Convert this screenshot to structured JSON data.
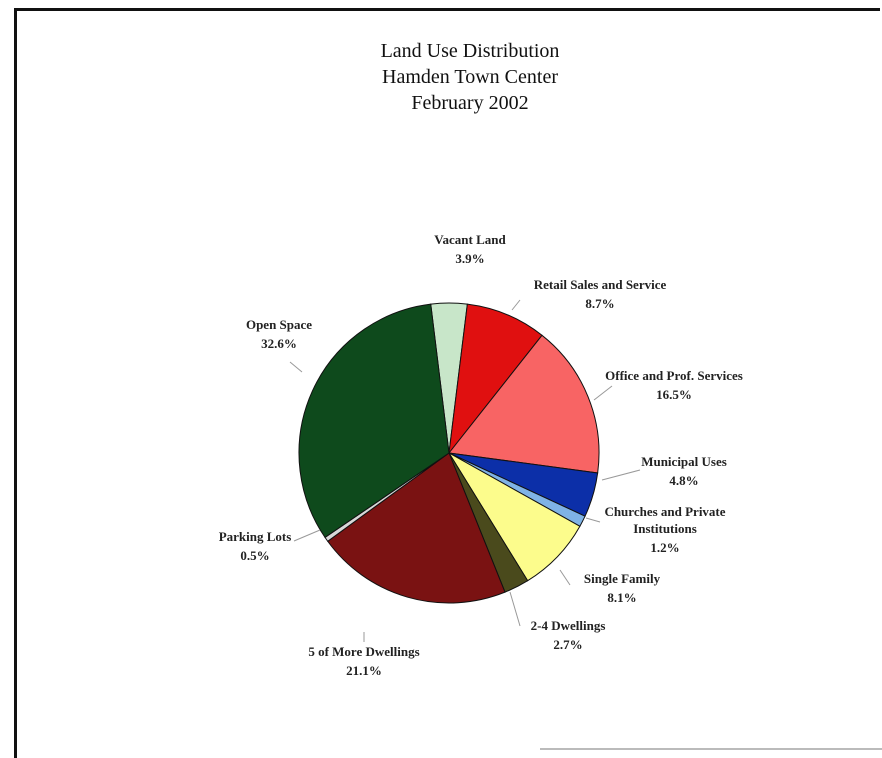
{
  "chart_data": {
    "type": "pie",
    "title": [
      "Land Use Distribution",
      "Hamden Town Center",
      "February 2002"
    ],
    "slices": [
      {
        "label": [
          "Vacant Land"
        ],
        "pct_label": "3.9%",
        "value": 3.9,
        "color": "#c8e6c9"
      },
      {
        "label": [
          "Retail Sales and Service"
        ],
        "pct_label": "8.7%",
        "value": 8.7,
        "color": "#e01010"
      },
      {
        "label": [
          "Office and Prof. Services"
        ],
        "pct_label": "16.5%",
        "value": 16.5,
        "color": "#f86464"
      },
      {
        "label": [
          "Municipal Uses"
        ],
        "pct_label": "4.8%",
        "value": 4.8,
        "color": "#0c2fa8"
      },
      {
        "label": [
          "Churches and Private",
          "Institutions"
        ],
        "pct_label": "1.2%",
        "value": 1.2,
        "color": "#7fb3e6"
      },
      {
        "label": [
          "Single Family"
        ],
        "pct_label": "8.1%",
        "value": 8.1,
        "color": "#fcfc8c"
      },
      {
        "label": [
          "2-4 Dwellings"
        ],
        "pct_label": "2.7%",
        "value": 2.7,
        "color": "#4a4a1c"
      },
      {
        "label": [
          "5 of More Dwellings"
        ],
        "pct_label": "21.1%",
        "value": 21.1,
        "color": "#7a1212"
      },
      {
        "label": [
          "Parking Lots"
        ],
        "pct_label": "0.5%",
        "value": 0.5,
        "color": "#d8d8d8"
      },
      {
        "label": [
          "Open Space"
        ],
        "pct_label": "32.6%",
        "value": 32.6,
        "color": "#0e4a1c"
      }
    ]
  }
}
